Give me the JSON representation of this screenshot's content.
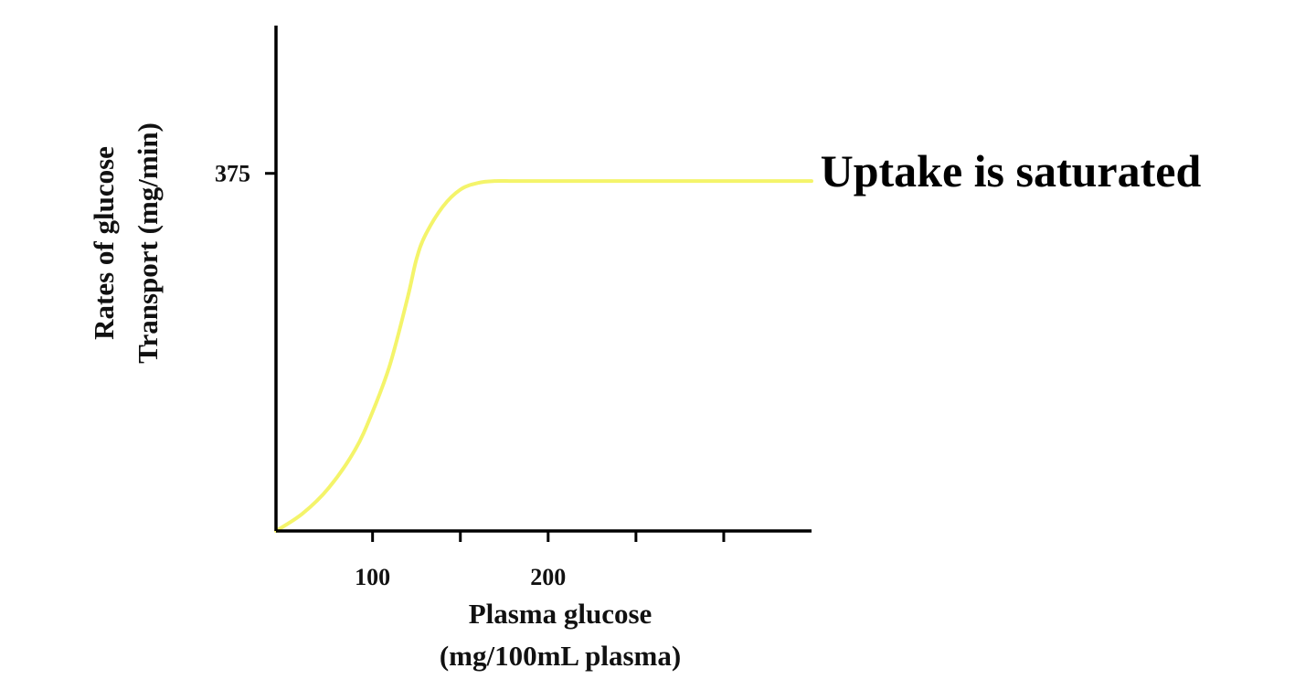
{
  "chart_data": {
    "type": "line",
    "xlabel_lines": [
      "Plasma glucose",
      "(mg/100mL plasma)"
    ],
    "ylabel_lines": [
      "Rates of glucose",
      "Transport (mg/min)"
    ],
    "x_tick_values": [
      100,
      150,
      200,
      250,
      300
    ],
    "x_tick_labels": [
      "100",
      "",
      "200",
      "",
      ""
    ],
    "y_tick_values": [
      375
    ],
    "y_tick_labels": [
      "375"
    ],
    "xlim": [
      45,
      350
    ],
    "ylim": [
      0,
      530
    ],
    "line_color": "#f4f46a",
    "axis_color": "#000000",
    "series": [
      {
        "x": [
          45,
          60,
          75,
          90,
          100,
          110,
          120,
          125,
          130,
          140,
          150,
          160,
          170,
          180,
          200,
          250,
          300,
          350
        ],
        "y": [
          0,
          18,
          45,
          85,
          125,
          175,
          245,
          285,
          310,
          340,
          358,
          365,
          367,
          367,
          367,
          367,
          367,
          367
        ]
      }
    ],
    "annotations": [
      {
        "text": "Uptake is saturated",
        "x": 355,
        "y": 367
      }
    ]
  }
}
